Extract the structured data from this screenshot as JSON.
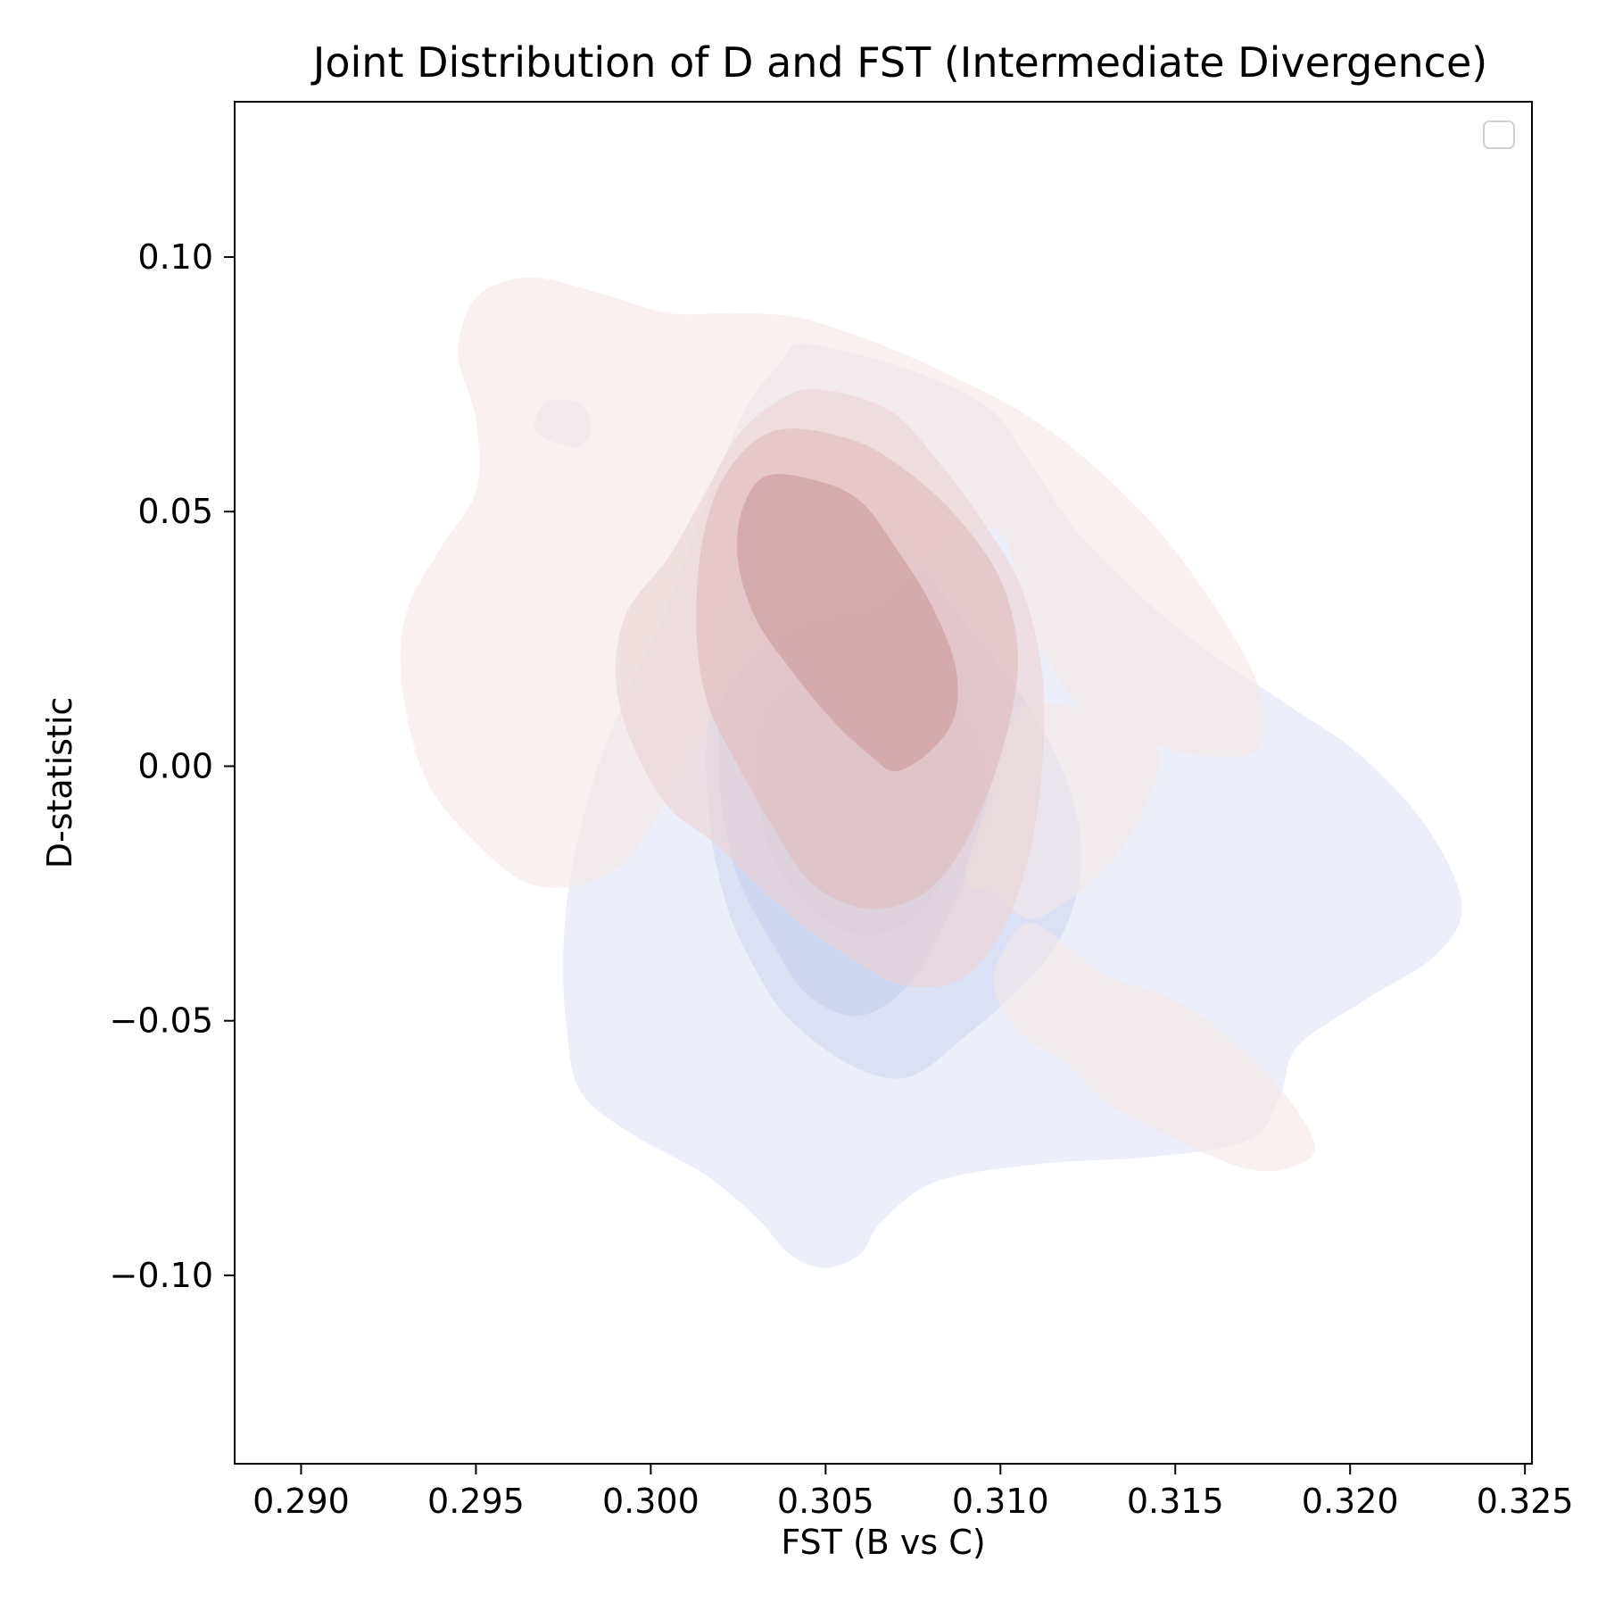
{
  "chart_data": {
    "type": "kde-contour",
    "title": "Joint Distribution of D and FST (Intermediate Divergence)",
    "xlabel": "FST (B vs C)",
    "ylabel": "D-statistic",
    "xlim": [
      0.2881,
      0.3252
    ],
    "ylim": [
      -0.137,
      0.1305
    ],
    "x_ticks": [
      0.29,
      0.295,
      0.3,
      0.305,
      0.31,
      0.315,
      0.32,
      0.325
    ],
    "x_tick_labels": [
      "0.290",
      "0.295",
      "0.300",
      "0.305",
      "0.310",
      "0.315",
      "0.320",
      "0.325"
    ],
    "y_ticks": [
      0.1,
      0.05,
      0.0,
      -0.05,
      -0.1
    ],
    "y_tick_labels": [
      "0.10",
      "0.05",
      "0.00",
      "−0.05",
      "−0.10"
    ],
    "grid": false,
    "legend": {
      "location": "upper right",
      "entries": []
    },
    "series": [
      {
        "colormap": "blue",
        "colors": [
          "#e4e8f6",
          "#d4dbf2",
          "#cbd1ee",
          "#c2c8e8"
        ],
        "levels": [
          {
            "level": 1,
            "contours": [
              [
                [
                  0.3044,
                  0.083
                ],
                [
                  0.3073,
                  0.0781
                ],
                [
                  0.3097,
                  0.0702
                ],
                [
                  0.3109,
                  0.059
                ],
                [
                  0.3124,
                  0.0444
                ],
                [
                  0.3152,
                  0.0264
                ],
                [
                  0.3182,
                  0.0121
                ],
                [
                  0.3203,
                  0.0021
                ],
                [
                  0.3222,
                  -0.0121
                ],
                [
                  0.3232,
                  -0.0274
                ],
                [
                  0.3224,
                  -0.0374
                ],
                [
                  0.3205,
                  -0.0456
                ],
                [
                  0.3185,
                  -0.055
                ],
                [
                  0.318,
                  -0.0647
                ],
                [
                  0.3171,
                  -0.0734
                ],
                [
                  0.3144,
                  -0.0767
                ],
                [
                  0.3113,
                  -0.078
                ],
                [
                  0.3082,
                  -0.0815
                ],
                [
                  0.3066,
                  -0.0895
                ],
                [
                  0.306,
                  -0.0958
                ],
                [
                  0.305,
                  -0.0985
                ],
                [
                  0.304,
                  -0.096
                ],
                [
                  0.303,
                  -0.0885
                ],
                [
                  0.3015,
                  -0.08
                ],
                [
                  0.2994,
                  -0.072
                ],
                [
                  0.298,
                  -0.064
                ],
                [
                  0.2976,
                  -0.052
                ],
                [
                  0.2975,
                  -0.036
                ],
                [
                  0.2978,
                  -0.018
                ],
                [
                  0.2987,
                  0.004
                ],
                [
                  0.3004,
                  0.03
                ],
                [
                  0.3016,
                  0.052
                ],
                [
                  0.3027,
                  0.07
                ],
                [
                  0.3038,
                  0.08
                ]
              ],
              [
                [
                  0.297,
                  0.0715
                ],
                [
                  0.298,
                  0.0712
                ],
                [
                  0.2983,
                  0.066
                ],
                [
                  0.298,
                  0.063
                ],
                [
                  0.2975,
                  0.063
                ],
                [
                  0.2967,
                  0.066
                ]
              ]
            ]
          },
          {
            "level": 2,
            "contours": [
              [
                [
                  0.3042,
                  0.057
                ],
                [
                  0.3057,
                  0.053
                ],
                [
                  0.3073,
                  0.043
                ],
                [
                  0.3089,
                  0.029
                ],
                [
                  0.3108,
                  0.012
                ],
                [
                  0.312,
                  -0.005
                ],
                [
                  0.3123,
                  -0.02
                ],
                [
                  0.3117,
                  -0.034
                ],
                [
                  0.3105,
                  -0.044
                ],
                [
                  0.309,
                  -0.053
                ],
                [
                  0.3074,
                  -0.061
                ],
                [
                  0.3058,
                  -0.059
                ],
                [
                  0.304,
                  -0.05
                ],
                [
                  0.303,
                  -0.04
                ],
                [
                  0.3022,
                  -0.028
                ],
                [
                  0.3017,
                  -0.012
                ],
                [
                  0.3016,
                  0.006
                ],
                [
                  0.302,
                  0.025
                ],
                [
                  0.3027,
                  0.042
                ],
                [
                  0.3034,
                  0.053
                ]
              ]
            ]
          },
          {
            "level": 3,
            "contours": [
              [
                [
                  0.3036,
                  0.03
                ],
                [
                  0.306,
                  0.03
                ],
                [
                  0.308,
                  0.023
                ],
                [
                  0.3094,
                  0.013
                ],
                [
                  0.31,
                  0.001
                ],
                [
                  0.3096,
                  -0.012
                ],
                [
                  0.3086,
                  -0.028
                ],
                [
                  0.3075,
                  -0.042
                ],
                [
                  0.306,
                  -0.049
                ],
                [
                  0.3045,
                  -0.045
                ],
                [
                  0.3035,
                  -0.035
                ],
                [
                  0.3025,
                  -0.022
                ],
                [
                  0.302,
                  -0.006
                ],
                [
                  0.302,
                  0.01
                ],
                [
                  0.3025,
                  0.023
                ]
              ]
            ]
          },
          {
            "level": 4,
            "contours": [
              [
                [
                  0.3041,
                  0.016
                ],
                [
                  0.3062,
                  0.019
                ],
                [
                  0.308,
                  0.015
                ],
                [
                  0.3091,
                  0.008
                ],
                [
                  0.3095,
                  -0.004
                ],
                [
                  0.3088,
                  -0.017
                ],
                [
                  0.3075,
                  -0.03
                ],
                [
                  0.306,
                  -0.033
                ],
                [
                  0.3046,
                  -0.028
                ],
                [
                  0.3035,
                  -0.018
                ],
                [
                  0.3031,
                  -0.005
                ],
                [
                  0.3032,
                  0.008
                ]
              ]
            ]
          }
        ]
      },
      {
        "colormap": "red",
        "colors": [
          "#f4e8e6",
          "#ecd3d3",
          "#e0bcbf",
          "#cd9a9c"
        ],
        "levels": [
          {
            "level": 1,
            "contours": [
              [
                [
                  0.2965,
                  0.096
                ],
                [
                  0.2985,
                  0.093
                ],
                [
                  0.3005,
                  0.089
                ],
                [
                  0.3025,
                  0.089
                ],
                [
                  0.3043,
                  0.088
                ],
                [
                  0.3065,
                  0.083
                ],
                [
                  0.3085,
                  0.077
                ],
                [
                  0.3105,
                  0.07
                ],
                [
                  0.3125,
                  0.06
                ],
                [
                  0.3148,
                  0.044
                ],
                [
                  0.3168,
                  0.024
                ],
                [
                  0.3175,
                  0.012
                ],
                [
                  0.3173,
                  0.003
                ],
                [
                  0.316,
                  0.002
                ],
                [
                  0.3145,
                  0.004
                ],
                [
                  0.3125,
                  0.01
                ],
                [
                  0.3108,
                  0.028
                ],
                [
                  0.31,
                  0.046
                ],
                [
                  0.3082,
                  0.042
                ],
                [
                  0.3066,
                  0.032
                ],
                [
                  0.3045,
                  0.028
                ],
                [
                  0.303,
                  0.022
                ],
                [
                  0.3016,
                  0.008
                ],
                [
                  0.3005,
                  -0.006
                ],
                [
                  0.2995,
                  -0.017
                ],
                [
                  0.2982,
                  -0.023
                ],
                [
                  0.2965,
                  -0.023
                ],
                [
                  0.295,
                  -0.015
                ],
                [
                  0.2936,
                  -0.003
                ],
                [
                  0.2929,
                  0.015
                ],
                [
                  0.293,
                  0.03
                ],
                [
                  0.294,
                  0.043
                ],
                [
                  0.295,
                  0.054
                ],
                [
                  0.295,
                  0.068
                ],
                [
                  0.2945,
                  0.081
                ],
                [
                  0.295,
                  0.092
                ]
              ],
              [
                [
                  0.3108,
                  0.012
                ],
                [
                  0.313,
                  0.01
                ],
                [
                  0.3145,
                  0.003
                ],
                [
                  0.314,
                  -0.01
                ],
                [
                  0.313,
                  -0.02
                ],
                [
                  0.3118,
                  -0.027
                ],
                [
                  0.3108,
                  -0.03
                ],
                [
                  0.3098,
                  -0.025
                ],
                [
                  0.309,
                  -0.022
                ],
                [
                  0.3095,
                  -0.01
                ],
                [
                  0.31,
                  0.002
                ]
              ],
              [
                [
                  0.311,
                  -0.031
                ],
                [
                  0.313,
                  -0.041
                ],
                [
                  0.315,
                  -0.046
                ],
                [
                  0.3168,
                  -0.055
                ],
                [
                  0.3182,
                  -0.065
                ],
                [
                  0.319,
                  -0.075
                ],
                [
                  0.3182,
                  -0.079
                ],
                [
                  0.317,
                  -0.079
                ],
                [
                  0.3152,
                  -0.074
                ],
                [
                  0.3132,
                  -0.067
                ],
                [
                  0.3118,
                  -0.058
                ],
                [
                  0.3105,
                  -0.052
                ],
                [
                  0.3098,
                  -0.043
                ],
                [
                  0.3102,
                  -0.035
                ]
              ]
            ]
          },
          {
            "level": 2,
            "contours": [
              [
                [
                  0.3048,
                  0.074
                ],
                [
                  0.3068,
                  0.07
                ],
                [
                  0.3082,
                  0.06
                ],
                [
                  0.3095,
                  0.048
                ],
                [
                  0.3106,
                  0.035
                ],
                [
                  0.3112,
                  0.018
                ],
                [
                  0.3112,
                  0.0
                ],
                [
                  0.3108,
                  -0.018
                ],
                [
                  0.31,
                  -0.033
                ],
                [
                  0.3088,
                  -0.042
                ],
                [
                  0.3072,
                  -0.043
                ],
                [
                  0.3058,
                  -0.038
                ],
                [
                  0.3043,
                  -0.031
                ],
                [
                  0.303,
                  -0.023
                ],
                [
                  0.3018,
                  -0.015
                ],
                [
                  0.3005,
                  -0.008
                ],
                [
                  0.2995,
                  0.004
                ],
                [
                  0.299,
                  0.017
                ],
                [
                  0.2993,
                  0.03
                ],
                [
                  0.3005,
                  0.041
                ],
                [
                  0.3015,
                  0.053
                ],
                [
                  0.3025,
                  0.065
                ],
                [
                  0.3037,
                  0.072
                ]
              ]
            ]
          },
          {
            "level": 3,
            "contours": [
              [
                [
                  0.3036,
                  0.066
                ],
                [
                  0.3058,
                  0.064
                ],
                [
                  0.3075,
                  0.057
                ],
                [
                  0.309,
                  0.047
                ],
                [
                  0.3101,
                  0.035
                ],
                [
                  0.3105,
                  0.02
                ],
                [
                  0.31,
                  0.002
                ],
                [
                  0.309,
                  -0.015
                ],
                [
                  0.3078,
                  -0.025
                ],
                [
                  0.3062,
                  -0.028
                ],
                [
                  0.3046,
                  -0.023
                ],
                [
                  0.3035,
                  -0.012
                ],
                [
                  0.3025,
                  0.0
                ],
                [
                  0.3016,
                  0.013
                ],
                [
                  0.3013,
                  0.028
                ],
                [
                  0.3015,
                  0.045
                ],
                [
                  0.3022,
                  0.058
                ]
              ]
            ]
          },
          {
            "level": 4,
            "contours": [
              [
                [
                  0.3033,
                  0.057
                ],
                [
                  0.3048,
                  0.056
                ],
                [
                  0.306,
                  0.052
                ],
                [
                  0.307,
                  0.043
                ],
                [
                  0.308,
                  0.032
                ],
                [
                  0.3087,
                  0.02
                ],
                [
                  0.3087,
                  0.01
                ],
                [
                  0.308,
                  0.003
                ],
                [
                  0.307,
                  -0.001
                ],
                [
                  0.3063,
                  0.002
                ],
                [
                  0.3052,
                  0.009
                ],
                [
                  0.304,
                  0.019
                ],
                [
                  0.303,
                  0.029
                ],
                [
                  0.3025,
                  0.04
                ],
                [
                  0.3026,
                  0.05
                ]
              ]
            ]
          }
        ]
      }
    ]
  }
}
